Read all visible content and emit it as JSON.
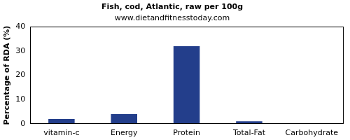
{
  "chart_data": {
    "type": "bar",
    "title": "Fish, cod, Atlantic, raw per 100g",
    "subtitle": "www.dietandfitnesstoday.com",
    "y_label": "Percentage of RDA (%)",
    "categories": [
      "vitamin-c",
      "Energy",
      "Protein",
      "Total-Fat",
      "Carbohydrate"
    ],
    "values": [
      2,
      4,
      32,
      1,
      0
    ],
    "color": "#233e8b",
    "ylim": [
      0,
      40
    ],
    "yticks": [
      0,
      10,
      20,
      30,
      40
    ],
    "grid": false
  }
}
